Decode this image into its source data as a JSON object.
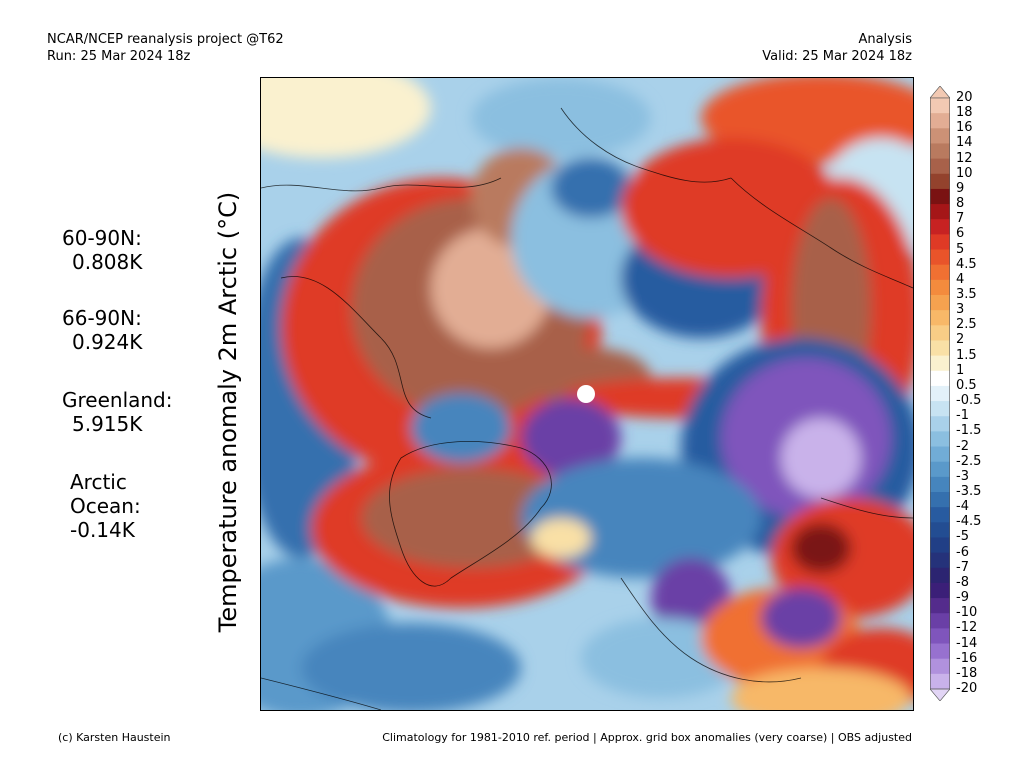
{
  "header": {
    "title": "NCAR/NCEP reanalysis project @T62",
    "run": "Run: 25 Mar 2024 18z",
    "type": "Analysis",
    "valid": "Valid: 25 Mar 2024 18z"
  },
  "yaxis_title": "Temperature anomaly 2m Arctic (°C)",
  "stats": [
    {
      "label": "60-90N:",
      "value": "0.808K"
    },
    {
      "label": "66-90N:",
      "value": "0.924K"
    },
    {
      "label": "Greenland:",
      "value": "5.915K"
    },
    {
      "label": "Arctic",
      "label2": "Ocean:",
      "value": "-0.14K"
    }
  ],
  "colorbar": {
    "labels": [
      "20",
      "18",
      "16",
      "14",
      "12",
      "10",
      "9",
      "8",
      "7",
      "6",
      "5",
      "4.5",
      "4",
      "3.5",
      "3",
      "2.5",
      "2",
      "1.5",
      "1",
      "0.5",
      "-0.5",
      "-1",
      "-1.5",
      "-2",
      "-2.5",
      "-3",
      "-3.5",
      "-4",
      "-4.5",
      "-5",
      "-6",
      "-7",
      "-8",
      "-9",
      "-10",
      "-12",
      "-14",
      "-16",
      "-18",
      "-20"
    ],
    "colors": [
      "#f2c9b3",
      "#e2ad94",
      "#cc9176",
      "#b97a5f",
      "#a8614a",
      "#93422d",
      "#7a1212",
      "#a51618",
      "#c72222",
      "#df3a25",
      "#e9542a",
      "#f07032",
      "#f48b3d",
      "#f6a24f",
      "#f7b868",
      "#f8cd86",
      "#f9e0a6",
      "#faf1cf",
      "#ffffff",
      "#e3f1f9",
      "#c7e3f2",
      "#a9d1ea",
      "#8bbfe0",
      "#71acd6",
      "#5a99ca",
      "#4685bd",
      "#3570ae",
      "#285ba0",
      "#234d92",
      "#213f86",
      "#25327a",
      "#2c2471",
      "#3b1f78",
      "#542c8c",
      "#6a3fa6",
      "#7f55bc",
      "#9771cf",
      "#b091dd",
      "#c9b2ea"
    ],
    "scale_colors": {
      "warm_max": "#f2c9b3",
      "neutral": "#ffffff",
      "cold_min": "#e2d5f5"
    }
  },
  "footer": {
    "credit": "(c) Karsten Haustein",
    "note": "Climatology for 1981-2010 ref. period | Approx. grid box anomalies (very coarse) | OBS adjusted"
  }
}
